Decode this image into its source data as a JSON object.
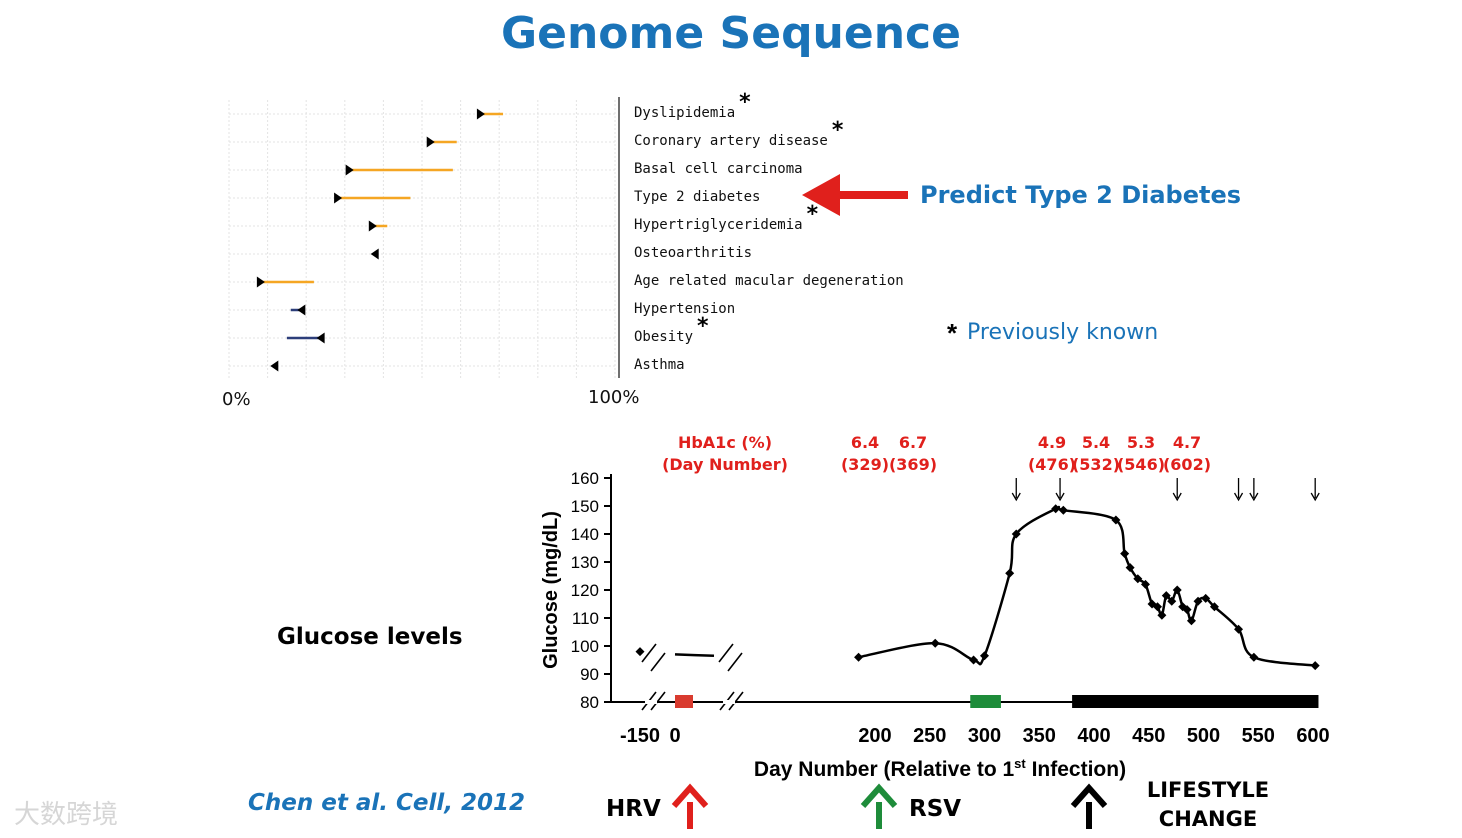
{
  "title": "Genome Sequence",
  "risk_panel": {
    "axis_min_label": "0%",
    "axis_max_label": "100%",
    "predict_label": "Predict Type 2 Diabetes",
    "legend_star": "*",
    "legend_text": "Previously known"
  },
  "glucose_label": "Glucose levels",
  "hba1c": {
    "header_line1": "HbA1c (%)",
    "header_line2": "(Day Number)",
    "measurements": [
      {
        "value": "6.4",
        "day": "(329)"
      },
      {
        "value": "6.7",
        "day": "(369)"
      },
      {
        "value": "4.9",
        "day": "(476)"
      },
      {
        "value": "5.4",
        "day": "(532)"
      },
      {
        "value": "5.3",
        "day": "(546)"
      },
      {
        "value": "4.7",
        "day": "(602)"
      }
    ]
  },
  "events": {
    "hrv": "HRV",
    "rsv": "RSV",
    "lifestyle_line1": "LIFESTYLE",
    "lifestyle_line2": "CHANGE"
  },
  "citation": "Chen et al. Cell, 2012",
  "watermark": "大数跨境",
  "colors": {
    "title": "#1a73b8",
    "orange": "#f5a623",
    "navy": "#2c3e7a",
    "red": "#e0201c",
    "green": "#1e8c3a"
  },
  "chart_data": [
    {
      "type": "range",
      "title": "",
      "xlim": [
        0,
        100
      ],
      "x_tick_labels": [
        "0%",
        "100%"
      ],
      "grid": true,
      "series": [
        {
          "name": "Dyslipidemia",
          "known": true,
          "marker": 65,
          "end": 71,
          "direction": "increase"
        },
        {
          "name": "Coronary artery disease",
          "known": true,
          "marker": 52,
          "end": 59,
          "direction": "increase"
        },
        {
          "name": "Basal cell carcinoma",
          "known": false,
          "marker": 31,
          "end": 58,
          "direction": "increase"
        },
        {
          "name": "Type 2 diabetes",
          "known": false,
          "marker": 28,
          "end": 47,
          "direction": "increase"
        },
        {
          "name": "Hypertriglyceridemia",
          "known": true,
          "marker": 37,
          "end": 41,
          "direction": "increase"
        },
        {
          "name": "Osteoarthritis",
          "known": false,
          "marker": 38,
          "end": 38,
          "direction": "decrease"
        },
        {
          "name": "Age related macular degeneration",
          "known": false,
          "marker": 8,
          "end": 22,
          "direction": "increase"
        },
        {
          "name": "Hypertension",
          "known": false,
          "marker": 19,
          "end": 16,
          "direction": "decrease"
        },
        {
          "name": "Obesity",
          "known": true,
          "marker": 24,
          "end": 15,
          "direction": "decrease"
        },
        {
          "name": "Asthma",
          "known": false,
          "marker": 12,
          "end": 12,
          "direction": "decrease"
        }
      ]
    },
    {
      "type": "line",
      "title": "",
      "xlabel": "Day Number (Relative to 1st Infection)",
      "ylabel": "Glucose (mg/dL)",
      "ylim": [
        80,
        160
      ],
      "y_ticks": [
        80,
        90,
        100,
        110,
        120,
        130,
        140,
        150,
        160
      ],
      "x_ticks": [
        -150,
        0,
        200,
        250,
        300,
        350,
        400,
        450,
        500,
        550,
        600
      ],
      "x_break": true,
      "series": [
        {
          "name": "",
          "points": [
            {
              "x": -150,
              "y": 98
            },
            {
              "x": 0,
              "y": 97
            },
            {
              "x": 65,
              "y": 96.5
            },
            {
              "x": 185,
              "y": 96
            },
            {
              "x": 255,
              "y": 101
            },
            {
              "x": 290,
              "y": 95
            },
            {
              "x": 300,
              "y": 96.5
            },
            {
              "x": 323,
              "y": 126
            },
            {
              "x": 329,
              "y": 140
            },
            {
              "x": 365,
              "y": 149
            },
            {
              "x": 372,
              "y": 148.5
            },
            {
              "x": 420,
              "y": 145
            },
            {
              "x": 428,
              "y": 133
            },
            {
              "x": 433,
              "y": 128
            },
            {
              "x": 440,
              "y": 124
            },
            {
              "x": 447,
              "y": 122
            },
            {
              "x": 453,
              "y": 115
            },
            {
              "x": 458,
              "y": 114
            },
            {
              "x": 462,
              "y": 111
            },
            {
              "x": 466,
              "y": 118
            },
            {
              "x": 471,
              "y": 116
            },
            {
              "x": 476,
              "y": 120
            },
            {
              "x": 481,
              "y": 114
            },
            {
              "x": 485,
              "y": 113
            },
            {
              "x": 489,
              "y": 109
            },
            {
              "x": 495,
              "y": 116
            },
            {
              "x": 502,
              "y": 117
            },
            {
              "x": 510,
              "y": 114
            },
            {
              "x": 532,
              "y": 106
            },
            {
              "x": 546,
              "y": 96
            },
            {
              "x": 602,
              "y": 93
            }
          ]
        }
      ],
      "event_bars": [
        {
          "label": "HRV",
          "color": "#d93b2f",
          "start": 0,
          "end": 30
        },
        {
          "label": "RSV",
          "color": "#1e8c3a",
          "start": 287,
          "end": 315
        },
        {
          "label": "LIFESTYLE CHANGE",
          "color": "#000000",
          "start": 380,
          "end": 605
        }
      ],
      "hba1c_markers": [
        {
          "day": 329,
          "value": 6.4
        },
        {
          "day": 369,
          "value": 6.7
        },
        {
          "day": 476,
          "value": 4.9
        },
        {
          "day": 532,
          "value": 5.4
        },
        {
          "day": 546,
          "value": 5.3
        },
        {
          "day": 602,
          "value": 4.7
        }
      ]
    }
  ]
}
